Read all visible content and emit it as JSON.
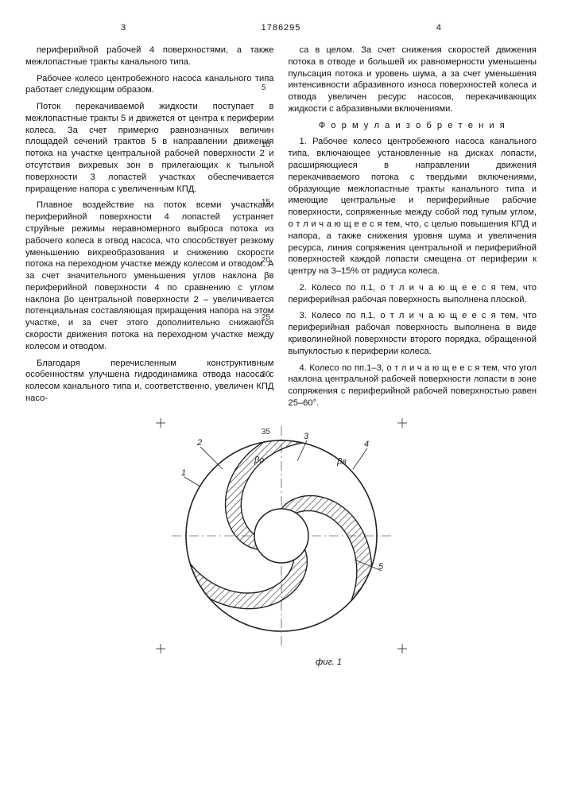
{
  "header": {
    "page_left": "3",
    "docnum": "1786295",
    "page_right": "4"
  },
  "line_marks": [
    "5",
    "10",
    "15",
    "20",
    "25",
    "30",
    "35"
  ],
  "col_left": [
    "периферийной рабочей 4 поверхностями, а также межлопастные тракты канального типа.",
    "Рабочее колесо центробежного насоса канального типа работает следующим образом.",
    "Поток перекачиваемой жидкости поступает в межлопастные тракты 5 и движется от центра к периферии колеса. За счет примерно равнозначных величин площадей сечений трактов 5 в направлении движения потока на участке центральной рабочей поверхности 2 и отсутствия вихревых зон в прилегающих к тыльной поверхности 3 лопастей участках обеспечивается приращение напора с увеличенным КПД.",
    "Плавное воздействие на поток всеми участками периферийной поверхности 4 лопастей устраняет струйные режимы неравномерного выброса потока из рабочего колеса в отвод насоса, что способствует резкому уменьшению вихреобразования и снижению скорости потока на переходном участке между колесом и отводом. А за счет значительного уменьшения углов наклона βв периферийной поверхности 4 по сравнению с углом наклона βо центральной поверхности 2 – увеличивается потенциальная составляющая приращения напора на этом участке, и за счет этого дополнительно снижаются скорости движения потока на переходном участке между колесом и отводом.",
    "Благодаря перечисленным конструктивным особенностям улучшена гидродинамика отвода насоса с колесом канального типа и, соответственно, увеличен КПД насо-"
  ],
  "col_right": [
    "са в целом. За счет снижения скоростей движения потока в отводе и большей их равномерности уменьшены пульсация потока и уровень шума, а за счет уменьшения интенсивности абразивного износа поверхностей колеса и отвода увеличен ресурс насосов, перекачивающих жидкости с абразивными включениями.",
    "Ф о р м у л а  и з о б р е т е н и я",
    "1. Рабочее колесо центробежного насоса канального типа, включающее установленные на дисках лопасти, расширяющиеся в направлении движения перекачиваемого потока с твердыми включениями, образующие межлопастные тракты канального типа и имеющие центральные и периферийные рабочие поверхности, сопряженные между собой под тупым углом, о т л и ч а ю щ е е с я тем, что, с целью повышения КПД и напора, а также снижения уровня шума и увеличения ресурса, линия сопряжения центральной и периферийной поверхностей каждой лопасти смещена от периферии к центру на 3–15% от радиуса колеса.",
    "2. Колесо по п.1, о т л и ч а ю щ е е с я тем, что периферийная рабочая поверхность выполнена плоской.",
    "3. Колесо по п.1, о т л и ч а ю щ е е с я тем, что периферийная рабочая поверхность выполнена в виде криволинейной поверхности второго порядка, обращенной выпуклостью к периферии колеса.",
    "4. Колесо по пп.1–3, о т л и ч а ю щ е е с я тем, что угол наклона центральной рабочей поверхности лопасти в зоне сопряжения с периферийной рабочей поверхностью равен 25–60°."
  ],
  "figure": {
    "caption": "фиг. 1",
    "labels": [
      "1",
      "2",
      "3",
      "4",
      "5"
    ],
    "beta_labels": [
      "βо",
      "βв"
    ],
    "colors": {
      "stroke": "#222222",
      "hatch": "#333333",
      "fill_impeller": "#ffffff",
      "background": "#ffffff"
    },
    "circle_outer_r": 120,
    "circle_inner_r": 34,
    "blade_count": 3
  }
}
